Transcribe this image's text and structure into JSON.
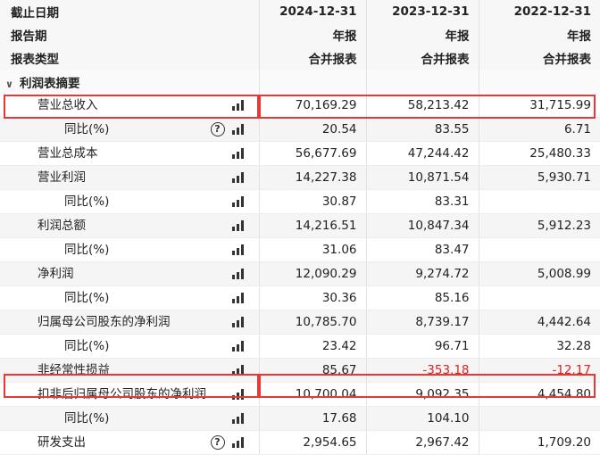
{
  "header": {
    "rows": [
      {
        "label": "截止日期",
        "cols": [
          "2024-12-31",
          "2023-12-31",
          "2022-12-31"
        ]
      },
      {
        "label": "报告期",
        "cols": [
          "年报",
          "年报",
          "年报"
        ]
      },
      {
        "label": "报表类型",
        "cols": [
          "合并报表",
          "合并报表",
          "合并报表"
        ]
      }
    ]
  },
  "section": {
    "label": "利润表摘要"
  },
  "rows": [
    {
      "label": "营业总收入",
      "sub": false,
      "help": false,
      "values": [
        "70,169.29",
        "58,213.42",
        "31,715.99"
      ],
      "negative": [
        false,
        false,
        false
      ]
    },
    {
      "label": "同比(%)",
      "sub": true,
      "help": true,
      "values": [
        "20.54",
        "83.55",
        "6.71"
      ],
      "negative": [
        false,
        false,
        false
      ]
    },
    {
      "label": "营业总成本",
      "sub": false,
      "help": false,
      "values": [
        "56,677.69",
        "47,244.42",
        "25,480.33"
      ],
      "negative": [
        false,
        false,
        false
      ]
    },
    {
      "label": "营业利润",
      "sub": false,
      "help": false,
      "values": [
        "14,227.38",
        "10,871.54",
        "5,930.71"
      ],
      "negative": [
        false,
        false,
        false
      ]
    },
    {
      "label": "同比(%)",
      "sub": true,
      "help": false,
      "values": [
        "30.87",
        "83.31",
        ""
      ],
      "negative": [
        false,
        false,
        false
      ]
    },
    {
      "label": "利润总额",
      "sub": false,
      "help": false,
      "values": [
        "14,216.51",
        "10,847.34",
        "5,912.23"
      ],
      "negative": [
        false,
        false,
        false
      ]
    },
    {
      "label": "同比(%)",
      "sub": true,
      "help": false,
      "values": [
        "31.06",
        "83.47",
        ""
      ],
      "negative": [
        false,
        false,
        false
      ]
    },
    {
      "label": "净利润",
      "sub": false,
      "help": false,
      "values": [
        "12,090.29",
        "9,274.72",
        "5,008.99"
      ],
      "negative": [
        false,
        false,
        false
      ]
    },
    {
      "label": "同比(%)",
      "sub": true,
      "help": false,
      "values": [
        "30.36",
        "85.16",
        ""
      ],
      "negative": [
        false,
        false,
        false
      ]
    },
    {
      "label": "归属母公司股东的净利润",
      "sub": false,
      "help": false,
      "values": [
        "10,785.70",
        "8,739.17",
        "4,442.64"
      ],
      "negative": [
        false,
        false,
        false
      ]
    },
    {
      "label": "同比(%)",
      "sub": true,
      "help": false,
      "values": [
        "23.42",
        "96.71",
        "32.28"
      ],
      "negative": [
        false,
        false,
        false
      ]
    },
    {
      "label": "非经常性损益",
      "sub": false,
      "help": false,
      "values": [
        "85.67",
        "-353.18",
        "-12.17"
      ],
      "negative": [
        false,
        true,
        true
      ]
    },
    {
      "label": "扣非后归属母公司股东的净利润",
      "sub": false,
      "help": false,
      "values": [
        "10,700.04",
        "9,092.35",
        "4,454.80"
      ],
      "negative": [
        false,
        false,
        false
      ]
    },
    {
      "label": "同比(%)",
      "sub": true,
      "help": false,
      "values": [
        "17.68",
        "104.10",
        ""
      ],
      "negative": [
        false,
        false,
        false
      ]
    },
    {
      "label": "研发支出",
      "sub": false,
      "help": true,
      "values": [
        "2,954.65",
        "2,967.42",
        "1,709.20"
      ],
      "negative": [
        false,
        false,
        false
      ]
    }
  ],
  "icons": {
    "chart": "bar-chart-icon",
    "help": "question-circle-icon",
    "collapse": "chevron-down-icon"
  },
  "colors": {
    "negative": "#e02020",
    "highlight_border": "#e53935",
    "header_bg": "#f7f7f7",
    "alt_row_bg": "#f5f5f5"
  }
}
